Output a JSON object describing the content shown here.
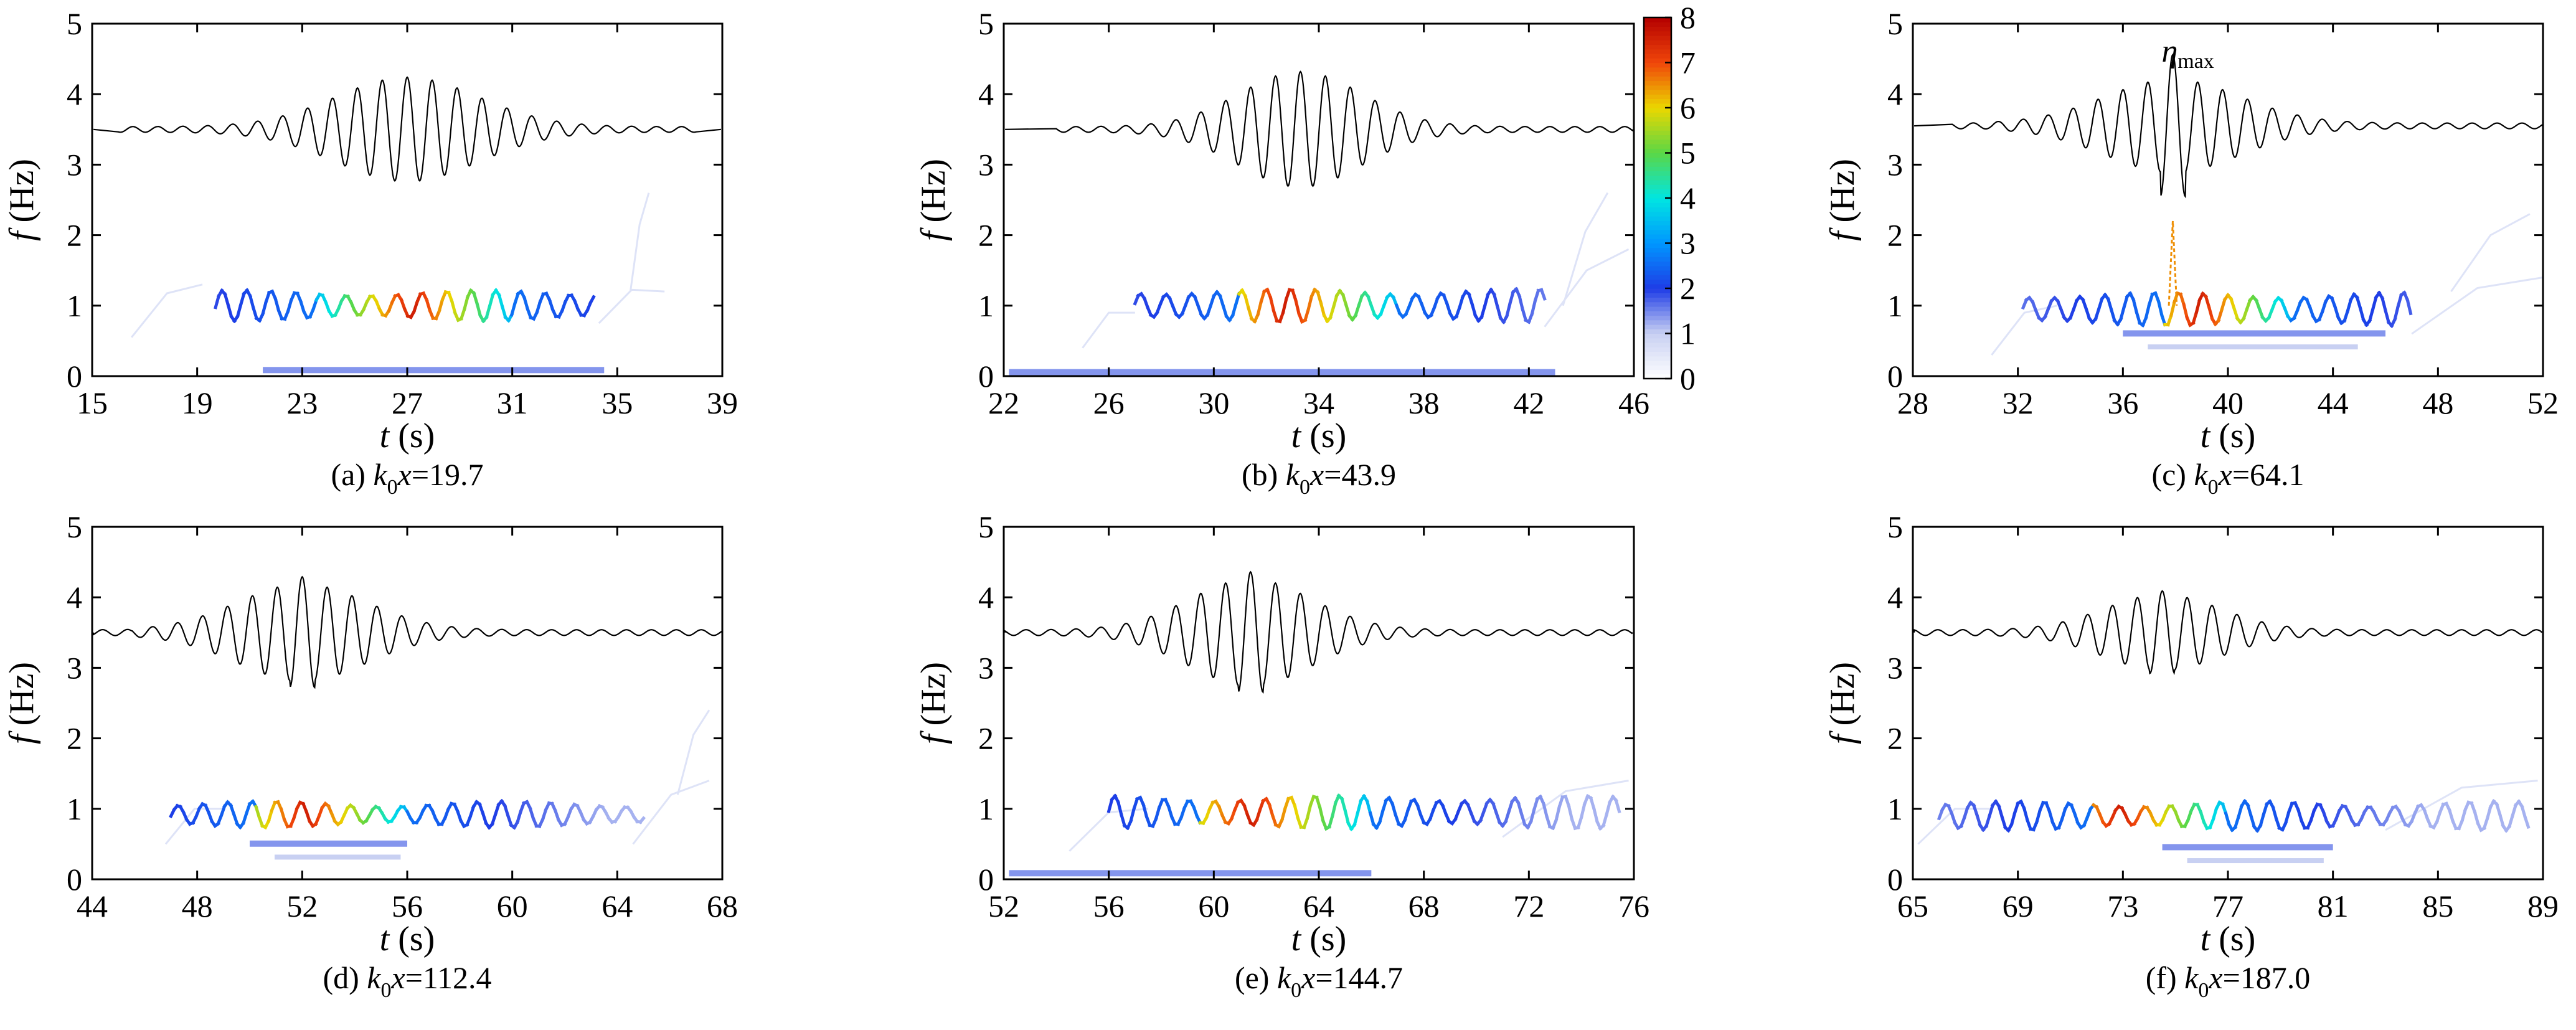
{
  "figure": {
    "colorbar": {
      "ticks": [
        "0",
        "1",
        "2",
        "3",
        "4",
        "5",
        "6",
        "7",
        "8"
      ],
      "min": 0,
      "max": 8,
      "colormap": "white-blue-cyan-green-yellow-red"
    }
  },
  "chart_data": [
    {
      "type": "heatmap",
      "caption_prefix": "(a) ",
      "caption_k": "k",
      "caption_sub": "0",
      "caption_x": "x",
      "caption_value": "=19.7",
      "xlabel_var": "t",
      "xlabel_unit": " (s)",
      "ylabel_var": "f",
      "ylabel_unit": " (Hz)",
      "xlim": [
        15,
        39
      ],
      "ylim": [
        0,
        5
      ],
      "xticks": [
        "15",
        "19",
        "23",
        "27",
        "31",
        "35",
        "39"
      ],
      "yticks": [
        "0",
        "1",
        "2",
        "3",
        "4",
        "5"
      ],
      "annotation": "",
      "wave": {
        "baseline": 3.5,
        "start": 17.5,
        "end": 36.5,
        "peak_t": 27.0,
        "spread": 4.2,
        "amp": 0.7,
        "period": 0.95,
        "peak_boost": 0
      },
      "ridge": {
        "start": 19.7,
        "end": 34.2,
        "center": 1.0,
        "amp": 0.18,
        "period": 0.95,
        "hot_start": 23.6,
        "hot_end": 31.0,
        "hot_peak": 27.3,
        "spike_t": null
      },
      "low_band": {
        "start": 21.5,
        "end": 34.5,
        "level": 0.08
      },
      "faint": [
        [
          16.5,
          0.55,
          19.2,
          1.3
        ],
        [
          34.3,
          0.75,
          36.8,
          1.2
        ],
        [
          35.5,
          1.2,
          36.2,
          2.6
        ]
      ]
    },
    {
      "type": "heatmap",
      "caption_prefix": "(b) ",
      "caption_k": "k",
      "caption_sub": "0",
      "caption_x": "x",
      "caption_value": "=43.9",
      "xlabel_var": "t",
      "xlabel_unit": " (s)",
      "ylabel_var": "f",
      "ylabel_unit": " (Hz)",
      "xlim": [
        22,
        46
      ],
      "ylim": [
        0,
        5
      ],
      "xticks": [
        "22",
        "26",
        "30",
        "34",
        "38",
        "42",
        "46"
      ],
      "yticks": [
        "0",
        "1",
        "2",
        "3",
        "4",
        "5"
      ],
      "annotation": "",
      "wave": {
        "baseline": 3.5,
        "start": 25.5,
        "end": 45.5,
        "peak_t": 33.3,
        "spread": 3.6,
        "amp": 0.78,
        "period": 0.95,
        "peak_boost": 0
      },
      "ridge": {
        "start": 27.0,
        "end": 42.6,
        "center": 1.0,
        "amp": 0.2,
        "period": 0.95,
        "hot_start": 31.0,
        "hot_end": 37.0,
        "hot_peak": 32.8,
        "spike_t": null
      },
      "low_band": {
        "start": 22.2,
        "end": 43.0,
        "level": 0.05
      },
      "faint": [
        [
          25.0,
          0.4,
          27.0,
          0.9
        ],
        [
          42.6,
          0.7,
          45.8,
          1.8
        ],
        [
          43.3,
          1.0,
          45.0,
          2.6
        ]
      ]
    },
    {
      "type": "heatmap",
      "caption_prefix": "(c) ",
      "caption_k": "k",
      "caption_sub": "0",
      "caption_x": "x",
      "caption_value": "=64.1",
      "xlabel_var": "t",
      "xlabel_unit": " (s)",
      "ylabel_var": "f",
      "ylabel_unit": " (Hz)",
      "xlim": [
        28,
        52
      ],
      "ylim": [
        0,
        5
      ],
      "xticks": [
        "28",
        "32",
        "36",
        "40",
        "44",
        "48",
        "52"
      ],
      "yticks": [
        "0",
        "1",
        "2",
        "3",
        "4",
        "5"
      ],
      "annotation_var": "η",
      "annotation_sub": "max",
      "annotation_t": 37.9,
      "annotation_f": 4.55,
      "wave": {
        "baseline": 3.55,
        "start": 31.0,
        "end": 51.8,
        "peak_t": 37.9,
        "spread": 4.0,
        "amp": 0.62,
        "period": 0.95,
        "peak_boost": 0.35
      },
      "ridge": {
        "start": 32.2,
        "end": 47.0,
        "center": 0.95,
        "amp": 0.2,
        "period": 0.95,
        "hot_start": 37.6,
        "hot_end": 42.4,
        "hot_peak": 39.0,
        "spike_t": 37.9
      },
      "low_band": {
        "start": 36.0,
        "end": 46.0,
        "level": 0.6
      },
      "faint": [
        [
          31.0,
          0.3,
          33.5,
          1.0
        ],
        [
          47.0,
          0.6,
          52.0,
          1.4
        ],
        [
          48.5,
          1.2,
          51.5,
          2.3
        ]
      ]
    },
    {
      "type": "heatmap",
      "caption_prefix": "(d) ",
      "caption_k": "k",
      "caption_sub": "0",
      "caption_x": "x",
      "caption_value": "=112.4",
      "xlabel_var": "t",
      "xlabel_unit": " (s)",
      "ylabel_var": "f",
      "ylabel_unit": " (Hz)",
      "xlim": [
        44,
        68
      ],
      "ylim": [
        0,
        5
      ],
      "xticks": [
        "44",
        "48",
        "52",
        "56",
        "60",
        "64",
        "68"
      ],
      "yticks": [
        "0",
        "1",
        "2",
        "3",
        "4",
        "5"
      ],
      "annotation": "",
      "wave": {
        "baseline": 3.5,
        "start": 45.5,
        "end": 67.8,
        "peak_t": 52.0,
        "spread": 3.8,
        "amp": 0.65,
        "period": 0.95,
        "peak_boost": 0.1
      },
      "ridge": {
        "start": 47.0,
        "end": 65.0,
        "center": 0.92,
        "amp": 0.15,
        "period": 0.95,
        "hot_start": 50.3,
        "hot_end": 56.0,
        "hot_peak": 52.2,
        "spike_t": null
      },
      "low_band": {
        "start": 50.0,
        "end": 56.0,
        "level": 0.5
      },
      "faint": [
        [
          46.8,
          0.5,
          49.0,
          1.0
        ],
        [
          64.6,
          0.5,
          67.5,
          1.4
        ],
        [
          66.3,
          1.2,
          67.5,
          2.4
        ]
      ]
    },
    {
      "type": "heatmap",
      "caption_prefix": "(e) ",
      "caption_k": "k",
      "caption_sub": "0",
      "caption_x": "x",
      "caption_value": "=144.7",
      "xlabel_var": "t",
      "xlabel_unit": " (s)",
      "ylabel_var": "f",
      "ylabel_unit": " (Hz)",
      "xlim": [
        52,
        76
      ],
      "ylim": [
        0,
        5
      ],
      "xticks": [
        "52",
        "56",
        "60",
        "64",
        "68",
        "72",
        "76"
      ],
      "yticks": [
        "0",
        "1",
        "2",
        "3",
        "4",
        "5"
      ],
      "annotation": "",
      "wave": {
        "baseline": 3.5,
        "start": 52.2,
        "end": 75.8,
        "peak_t": 61.4,
        "spread": 3.6,
        "amp": 0.72,
        "period": 0.95,
        "peak_boost": 0.1
      },
      "ridge": {
        "start": 56.0,
        "end": 75.5,
        "center": 0.95,
        "amp": 0.2,
        "period": 0.95,
        "hot_start": 59.5,
        "hot_end": 66.0,
        "hot_peak": 61.5,
        "spike_t": null
      },
      "low_band": {
        "start": 52.2,
        "end": 66.0,
        "level": 0.08
      },
      "faint": [
        [
          54.5,
          0.4,
          57.5,
          1.0
        ],
        [
          71.0,
          0.6,
          75.8,
          1.4
        ]
      ]
    },
    {
      "type": "heatmap",
      "caption_prefix": "(f) ",
      "caption_k": "k",
      "caption_sub": "0",
      "caption_x": "x",
      "caption_value": "=187.0",
      "xlabel_var": "t",
      "xlabel_unit": " (s)",
      "ylabel_var": "f",
      "ylabel_unit": " (Hz)",
      "xlim": [
        65,
        89
      ],
      "ylim": [
        0,
        5
      ],
      "xticks": [
        "65",
        "69",
        "73",
        "77",
        "81",
        "85",
        "89"
      ],
      "yticks": [
        "0",
        "1",
        "2",
        "3",
        "4",
        "5"
      ],
      "annotation": "",
      "wave": {
        "baseline": 3.5,
        "start": 65.2,
        "end": 88.8,
        "peak_t": 74.5,
        "spread": 3.4,
        "amp": 0.5,
        "period": 0.95,
        "peak_boost": 0.05
      },
      "ridge": {
        "start": 66.0,
        "end": 88.5,
        "center": 0.9,
        "amp": 0.17,
        "period": 0.95,
        "hot_start": 72.0,
        "hot_end": 77.0,
        "hot_peak": 73.0,
        "spike_t": null
      },
      "low_band": {
        "start": 74.5,
        "end": 81.0,
        "level": 0.45
      },
      "faint": [
        [
          65.2,
          0.5,
          68.0,
          1.0
        ],
        [
          83.0,
          0.7,
          88.8,
          1.4
        ]
      ]
    }
  ]
}
